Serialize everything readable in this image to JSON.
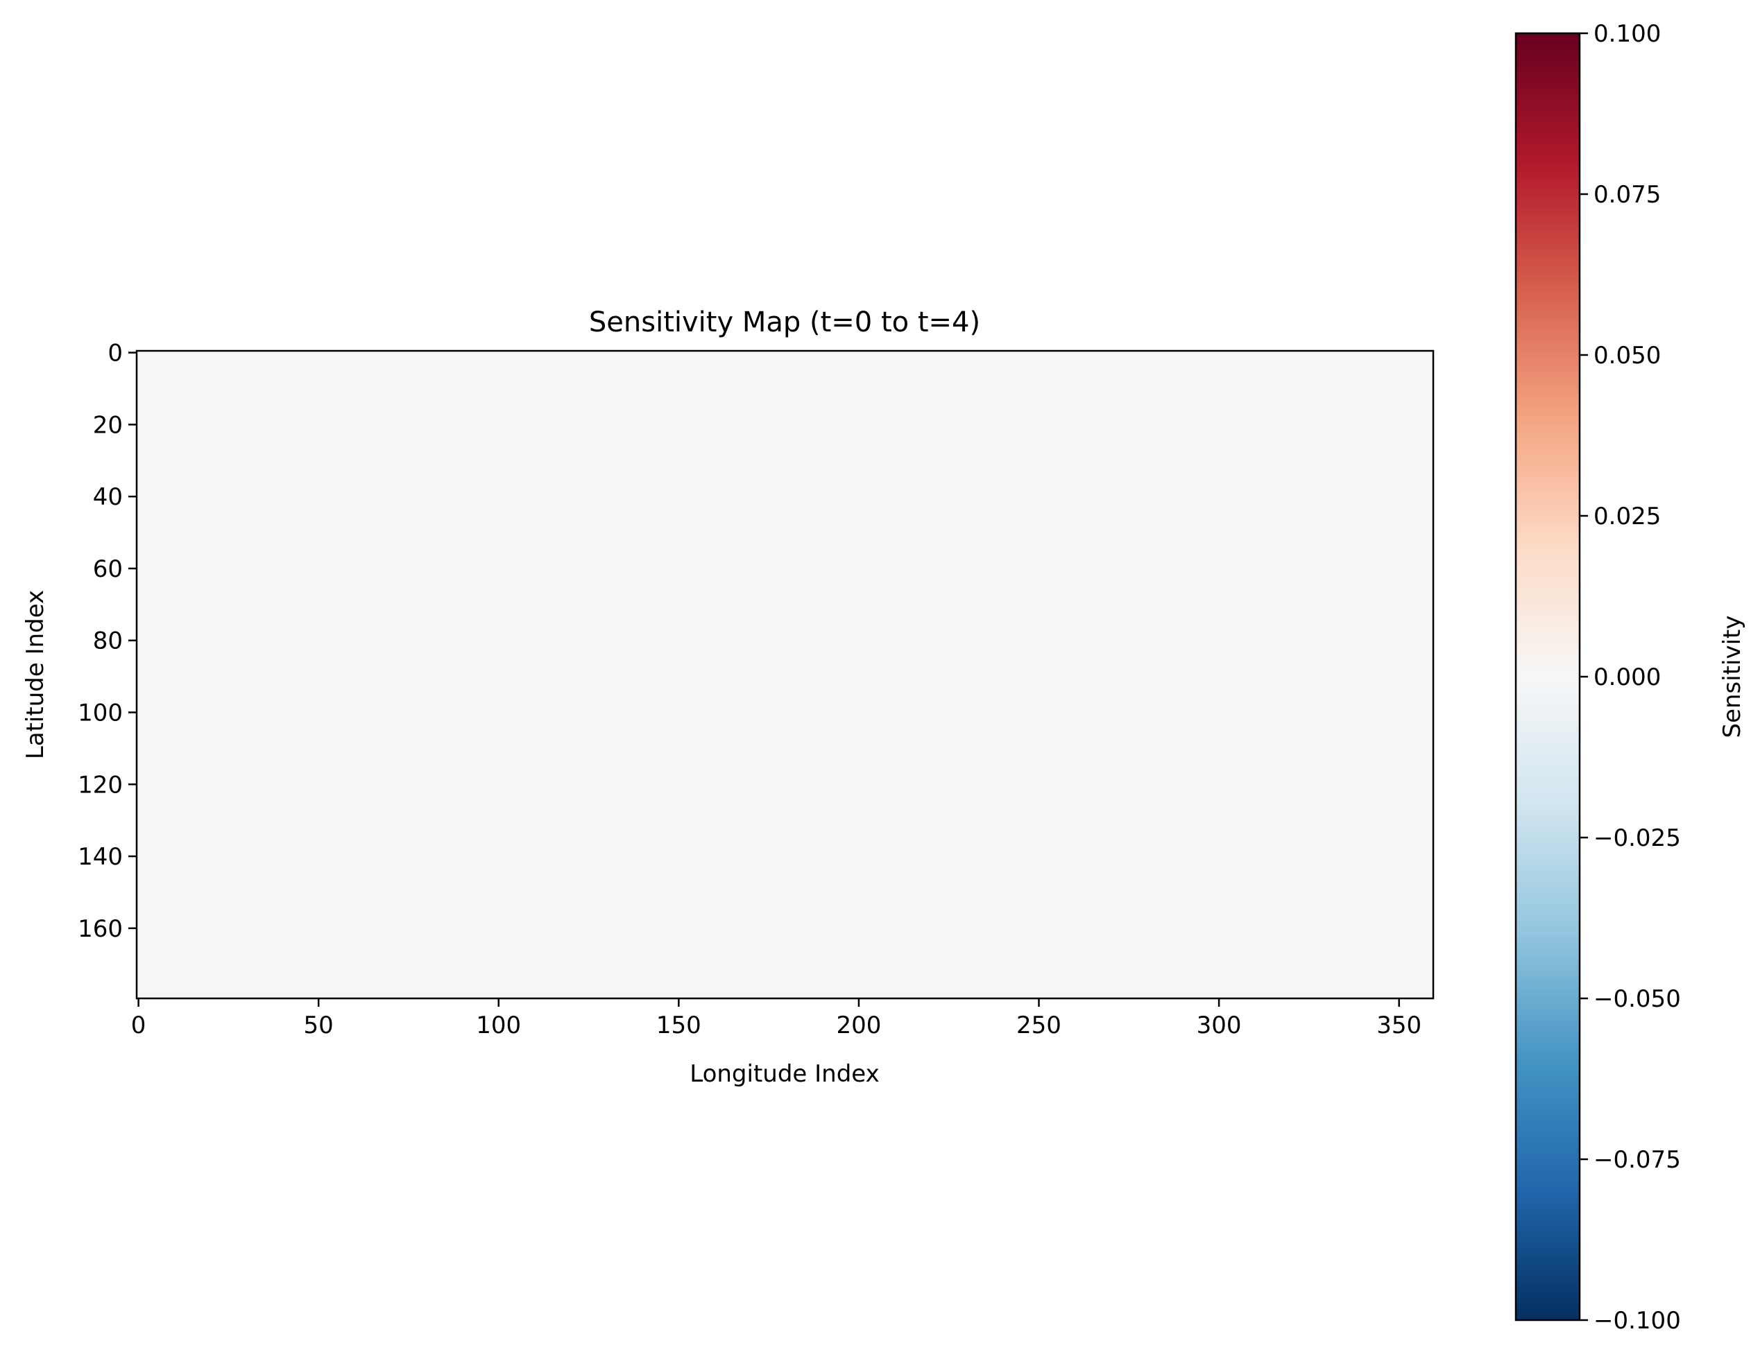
{
  "chart_data": {
    "type": "heatmap",
    "title": "Sensitivity Map (t=0 to t=4)",
    "xlabel": "Longitude Index",
    "ylabel": "Latitude Index",
    "xlim": [
      -0.5,
      359.5
    ],
    "ylim": [
      179.5,
      -0.5
    ],
    "x_ticks": [
      0,
      50,
      100,
      150,
      200,
      250,
      300,
      350
    ],
    "x_tick_labels": [
      "0",
      "50",
      "100",
      "150",
      "200",
      "250",
      "300",
      "350"
    ],
    "y_ticks": [
      0,
      20,
      40,
      60,
      80,
      100,
      120,
      140,
      160
    ],
    "y_tick_labels": [
      "0",
      "20",
      "40",
      "60",
      "80",
      "100",
      "120",
      "140",
      "160"
    ],
    "grid_shape": [
      180,
      360
    ],
    "value": 0.0,
    "fill_color": "#f6f6f6",
    "grid": false,
    "colorbar": {
      "label": "Sensitivity",
      "range": [
        -0.1,
        0.1
      ],
      "ticks": [
        0.1,
        0.075,
        0.05,
        0.025,
        0.0,
        -0.025,
        -0.05,
        -0.075,
        -0.1
      ],
      "tick_labels": [
        "0.100",
        "0.075",
        "0.050",
        "0.025",
        "0.000",
        "−0.025",
        "−0.050",
        "−0.075",
        "−0.100"
      ],
      "colormap": "RdBu_r",
      "stops": [
        "#67001f",
        "#b2182b",
        "#d6604d",
        "#f4a582",
        "#fddbc7",
        "#f7f7f7",
        "#d1e5f0",
        "#92c5de",
        "#4393c3",
        "#2166ac",
        "#053061"
      ]
    }
  }
}
